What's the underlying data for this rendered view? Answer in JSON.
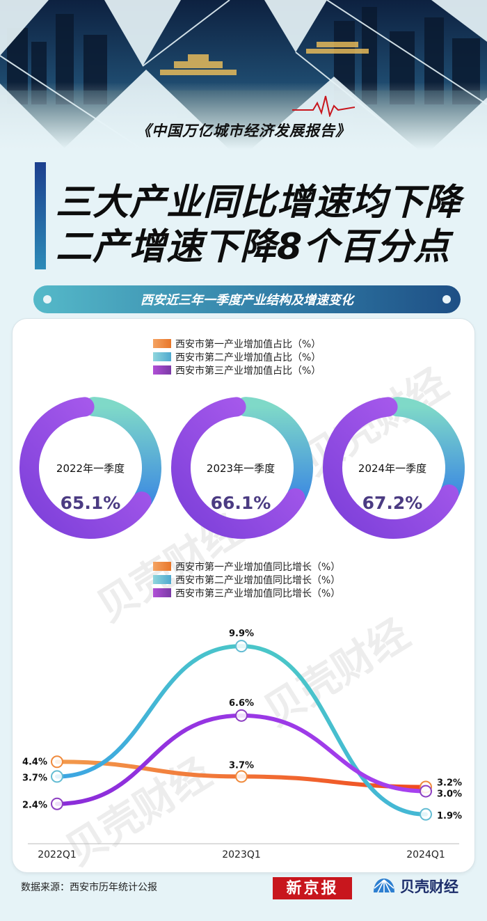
{
  "header": {
    "report_name": "《中国万亿城市经济发展报告》",
    "title_line1": "三大产业同比增速均下降",
    "title_line2": "二产增速下降8个百分点",
    "section_title": "西安近三年一季度产业结构及增速变化"
  },
  "colors": {
    "primary": "#f08a3c",
    "secondary": "#63bcd3",
    "tertiary": "#8d3fc2",
    "title_bar": "#1c3f8e"
  },
  "chart_data": [
    {
      "type": "pie",
      "legend": [
        {
          "name": "西安市第一产业增加值占比（%）",
          "color": "#f08a3c"
        },
        {
          "name": "西安市第二产业增加值占比（%）",
          "color": "#63bcd3"
        },
        {
          "name": "西安市第三产业增加值占比（%）",
          "color": "#8d3fc2"
        }
      ],
      "donuts": [
        {
          "label": "2022年一季度",
          "value_label": "65.1%",
          "values": [
            1.6,
            33.3,
            65.1
          ]
        },
        {
          "label": "2023年一季度",
          "value_label": "66.1%",
          "values": [
            1.6,
            32.3,
            66.1
          ]
        },
        {
          "label": "2024年一季度",
          "value_label": "67.2%",
          "values": [
            1.6,
            31.2,
            67.2
          ]
        }
      ]
    },
    {
      "type": "line",
      "categories": [
        "2022Q1",
        "2023Q1",
        "2024Q1"
      ],
      "legend_placement": "top",
      "ylim": [
        1,
        10.5
      ],
      "series": [
        {
          "name": "西安市第一产业增加值同比增长（%）",
          "color": "#f08a3c",
          "values": [
            4.4,
            3.7,
            3.2
          ],
          "labels": [
            "4.4%",
            "3.7%",
            "3.2%"
          ]
        },
        {
          "name": "西安市第二产业增加值同比增长（%）",
          "color": "#63bcd3",
          "values": [
            3.7,
            9.9,
            1.9
          ],
          "labels": [
            "3.7%",
            "9.9%",
            "1.9%"
          ]
        },
        {
          "name": "西安市第三产业增加值同比增长（%）",
          "color": "#8d3fc2",
          "values": [
            2.4,
            6.6,
            3.0
          ],
          "labels": [
            "2.4%",
            "6.6%",
            "3.0%"
          ]
        }
      ]
    }
  ],
  "watermark": "贝壳财经",
  "footer": {
    "source": "数据来源：西安市历年统计公报",
    "logo_xjb": "新京报",
    "logo_bk": "贝壳财经"
  }
}
